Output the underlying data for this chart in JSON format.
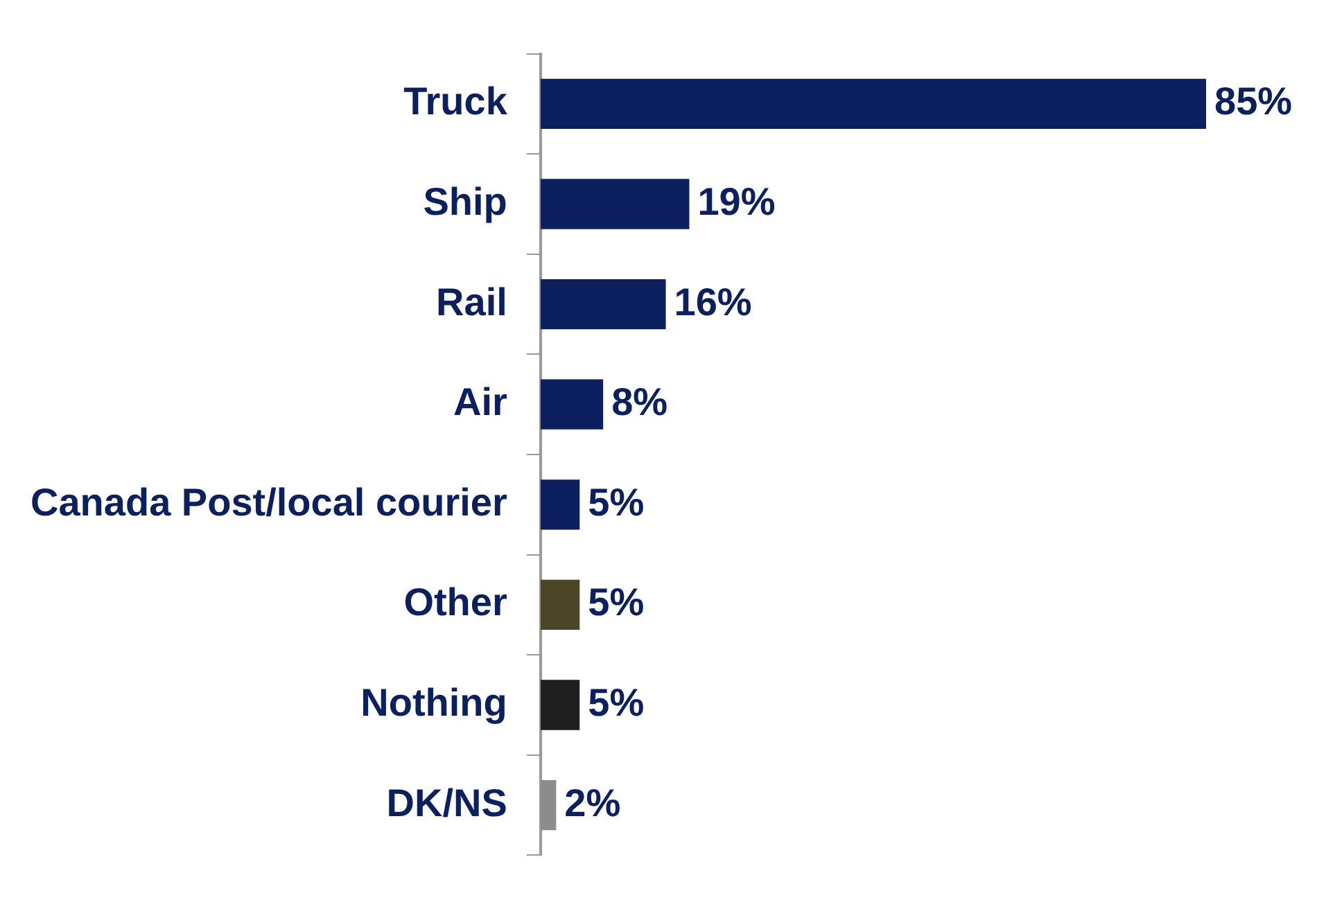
{
  "chart_data": {
    "type": "bar",
    "orientation": "horizontal",
    "categories": [
      "Truck",
      "Ship",
      "Rail",
      "Air",
      "Canada Post/local courier",
      "Other",
      "Nothing",
      "DK/NS"
    ],
    "values": [
      85,
      19,
      16,
      8,
      5,
      5,
      5,
      2
    ],
    "colors": [
      "#0c1f5e",
      "#0c1f5e",
      "#0c1f5e",
      "#0c1f5e",
      "#0c1f5e",
      "#4d4528",
      "#1f1f1f",
      "#8c8c8c"
    ],
    "value_labels": [
      "85%",
      "19%",
      "16%",
      "8%",
      "5%",
      "5%",
      "5%",
      "2%"
    ],
    "legend": false
  }
}
